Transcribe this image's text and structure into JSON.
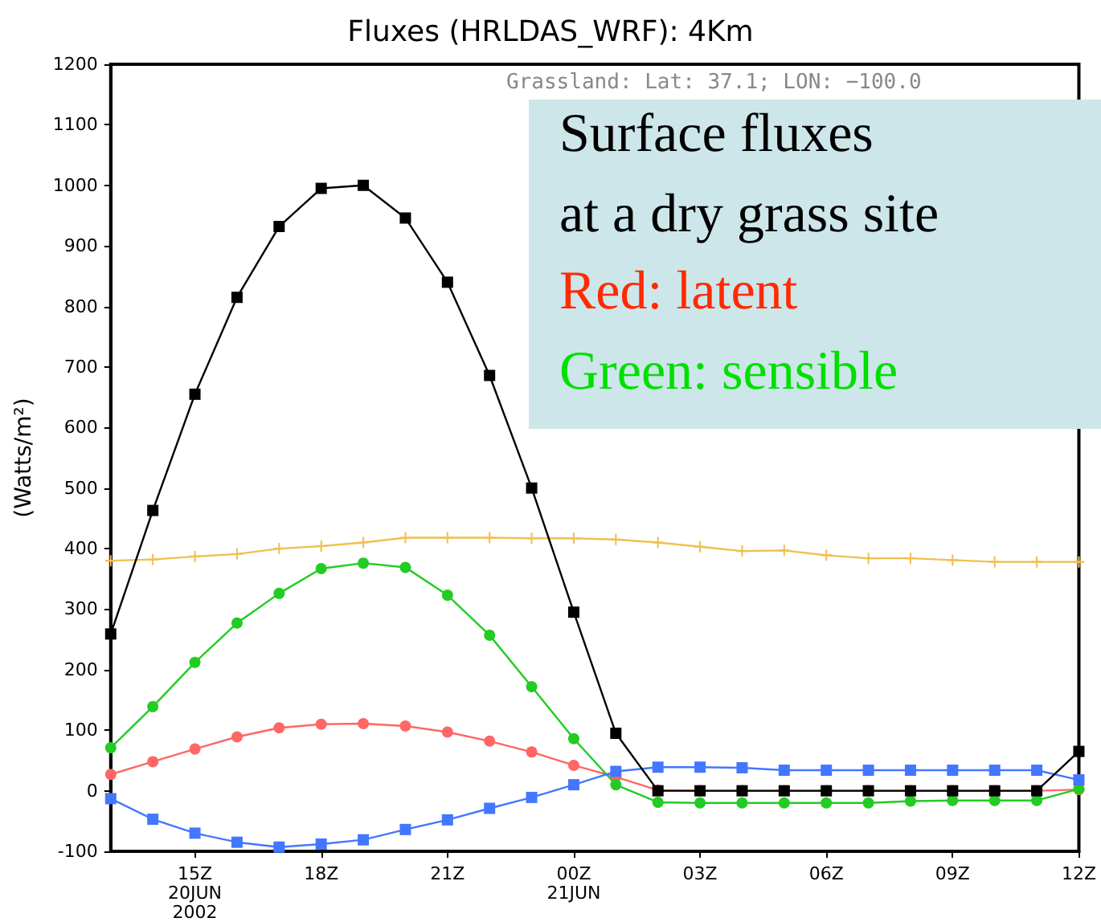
{
  "chart_data": {
    "type": "line",
    "title": "Fluxes (HRLDAS_WRF): 4Km",
    "ylabel": "(Watts/m²)",
    "annotations": [
      "Grassland: Lat: 37.1; LON: −100.0",
      "Surface fluxes",
      "at a dry grass site",
      "Red: latent",
      "Green: sensible"
    ],
    "x": [
      "2002-06-20T13:00",
      "2002-06-20T14:00",
      "2002-06-20T15:00",
      "2002-06-20T16:00",
      "2002-06-20T17:00",
      "2002-06-20T18:00",
      "2002-06-20T19:00",
      "2002-06-20T20:00",
      "2002-06-20T21:00",
      "2002-06-20T22:00",
      "2002-06-20T23:00",
      "2002-06-21T00:00",
      "2002-06-21T01:00",
      "2002-06-21T02:00",
      "2002-06-21T03:00",
      "2002-06-21T04:00",
      "2002-06-21T05:00",
      "2002-06-21T06:00",
      "2002-06-21T07:00",
      "2002-06-21T08:00",
      "2002-06-21T09:00",
      "2002-06-21T10:00",
      "2002-06-21T11:00",
      "2002-06-21T12:00"
    ],
    "xlim": [
      "2002-06-20T13:00",
      "2002-06-21T12:00"
    ],
    "xticks": [
      {
        "value": "2002-06-20T15:00",
        "label": "15Z\n20JUN\n2002"
      },
      {
        "value": "2002-06-20T18:00",
        "label": "18Z"
      },
      {
        "value": "2002-06-20T21:00",
        "label": "21Z"
      },
      {
        "value": "2002-06-21T00:00",
        "label": "00Z\n21JUN"
      },
      {
        "value": "2002-06-21T03:00",
        "label": "03Z"
      },
      {
        "value": "2002-06-21T06:00",
        "label": "06Z"
      },
      {
        "value": "2002-06-21T09:00",
        "label": "09Z"
      },
      {
        "value": "2002-06-21T12:00",
        "label": "12Z"
      }
    ],
    "ylim": [
      -100,
      1200
    ],
    "yticks": [
      -100,
      0,
      100,
      200,
      300,
      400,
      500,
      600,
      700,
      800,
      900,
      1000,
      1100,
      1200
    ],
    "series": [
      {
        "color": "#f0c050",
        "marker": "cross",
        "values": [
          380,
          382,
          387,
          391,
          400,
          404,
          410,
          418,
          418,
          418,
          417,
          417,
          415,
          410,
          403,
          396,
          397,
          389,
          384,
          384,
          381,
          378,
          378,
          378
        ]
      },
      {
        "color": "#ff6666",
        "marker": "circle",
        "values": [
          27,
          48,
          69,
          89,
          104,
          110,
          111,
          107,
          97,
          82,
          64,
          42,
          23,
          1,
          0,
          0,
          0,
          0,
          0,
          0,
          0,
          0,
          0,
          2
        ]
      },
      {
        "color": "#22cc22",
        "marker": "circle",
        "values": [
          71,
          139,
          212,
          277,
          326,
          367,
          376,
          369,
          323,
          257,
          172,
          86,
          10,
          -19,
          -20,
          -20,
          -20,
          -20,
          -20,
          -17,
          -16,
          -16,
          -16,
          3
        ]
      },
      {
        "color": "#4477ff",
        "marker": "square",
        "values": [
          -13,
          -47,
          -70,
          -85,
          -93,
          -88,
          -81,
          -64,
          -48,
          -29,
          -11,
          10,
          32,
          39,
          39,
          38,
          34,
          34,
          34,
          34,
          34,
          34,
          34,
          18
        ]
      },
      {
        "color": "#000000",
        "marker": "square",
        "values": [
          259,
          463,
          655,
          815,
          932,
          995,
          1000,
          946,
          840,
          686,
          500,
          295,
          95,
          0,
          0,
          0,
          0,
          0,
          0,
          0,
          0,
          0,
          0,
          65
        ]
      }
    ],
    "grid": false
  }
}
